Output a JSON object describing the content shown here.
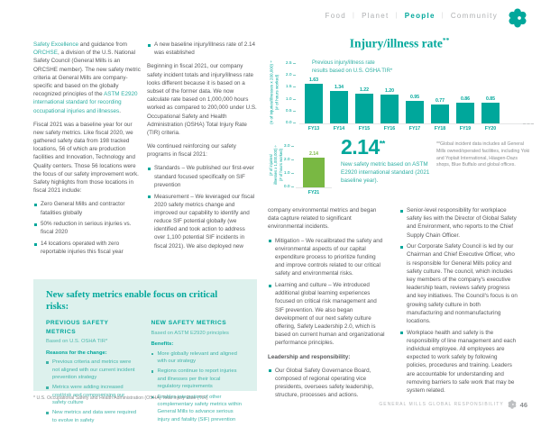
{
  "header": {
    "items": [
      {
        "label": "Food"
      },
      {
        "label": "Planet"
      },
      {
        "label": "People"
      },
      {
        "label": "Community"
      }
    ],
    "divider": "|"
  },
  "col1": {
    "p1": {
      "link1": "Safety Excellence",
      "t1": " and guidance from ",
      "link2": "ORCHSE",
      "t2": ", a division of the U.S. National Safety Council (General Mills is an ORCSHE member). The new safety metric criteria at General Mills are company-specific and based on the globally recognized principles of the ",
      "link3": "ASTM E2920 international standard for recording occupational injuries and illnesses",
      "t3": "."
    },
    "p2": "Fiscal 2021 was a baseline year for our new safety metrics. Like fiscal 2020, we gathered safety data from 198 tracked locations, 56 of which are production facilities and Innovation, Technology and Quality centers. Those 56 locations were the focus of our safety improvement work. Safety highlights from those locations in fiscal 2021 include:",
    "bullets": [
      "Zero General Mills and contractor fatalities globally",
      "50% reduction in serious injuries vs. fiscal 2020",
      "14 locations operated with zero reportable injuries this fiscal year"
    ]
  },
  "col2": {
    "bullet_top": "A new baseline injury/illness rate of 2.14 was established",
    "p1": "Beginning in fiscal 2021, our company safety incident totals and injury/illness rate looks different because it is based on a subset of the former data. We now calculate rate based on 1,000,000 hours worked as compared to 200,000 under U.S. Occupational Safety and Health Administration (OSHA) Total Injury Rate (TIR) criteria.",
    "p2": "We continued reinforcing our safety programs in fiscal 2021:",
    "bullets": [
      "Standards – We published our first-ever standard focused specifically on SIF prevention",
      "Measurement – We leveraged our fiscal 2020 safety metrics change and improved our capability to identify and reduce SIF potential globally (we identified and took action to address over 1,100 potential SIF incidents in fiscal 2021). We also deployed new"
    ]
  },
  "chart_data": [
    {
      "type": "bar",
      "title": "Injury/illness rate",
      "title_mark": "**",
      "annotation": "Previous injury/illness rate\nresults based on U.S. OSHA TIR*",
      "ylabel": "(# of injuries/illnesses x 200,000) ÷\n(# of hours worked)",
      "categories": [
        "FY13",
        "FY14",
        "FY15",
        "FY16",
        "FY17",
        "FY18",
        "FY19",
        "FY20"
      ],
      "values": [
        1.63,
        1.34,
        1.22,
        1.2,
        0.95,
        0.77,
        0.86,
        0.85
      ],
      "labels": [
        "1.63",
        "1.34",
        "1.22",
        "1.20",
        "0.95",
        "0.77",
        "0.86",
        "0.85"
      ],
      "ylim": [
        0,
        2.5
      ],
      "yticks": [
        "2.5",
        "2.0",
        "1.5",
        "1.0",
        "0.5",
        "0.0"
      ],
      "bar_color": "#00A79B",
      "grid": false,
      "legend": "none"
    },
    {
      "type": "bar",
      "title": "",
      "ylabel": "(# of injuries/\nillnesses x 1,000,000) ÷\n(# of hours worked)",
      "categories": [
        "FY21"
      ],
      "values": [
        2.14
      ],
      "labels": [
        "2.14"
      ],
      "ylim": [
        0,
        3
      ],
      "yticks": [
        "3.0",
        "2.0",
        "1.0",
        "0.0"
      ],
      "bar_color": "#79B843",
      "grid": false,
      "legend": "none"
    }
  ],
  "big_stat": {
    "value": "2.14",
    "mark": "**",
    "caption": "New safety metric based on ASTM E2920 international standard (2021 baseline year)."
  },
  "chart_footnote": "**Global incident data includes all General Mills owned/operated facilities, including Yoki and Yoplait International, Häagen-Dazs shops, Blue Buffalo and global offices.",
  "col3": {
    "p1": "company environmental metrics and began data capture related to significant environmental incidents.",
    "bullets": [
      "Mitigation – We recalibrated the safety and environmental aspects of our capital expenditure process to prioritize funding and improve controls related to our critical safety and environmental risks.",
      "Learning and culture – We introduced additional global learning experiences focused on critical risk management and SIF prevention. We also began development of our next safety culture offering, Safety Leadership 2.0, which is based on current human and organizational performance principles."
    ],
    "heading": "Leadership and responsibility:",
    "bullets2": [
      "Our Global Safety Governance Board, composed of regional operating vice presidents, oversees safety leadership, structure, processes and actions."
    ]
  },
  "col4": {
    "bullets": [
      "Senior-level responsibility for workplace safety lies with the Director of Global Safety and Environment, who reports to the Chief Supply Chain Officer.",
      "Our Corporate Safety Council is led by our Chairman and Chief Executive Officer, who is responsible for General Mills policy and safety culture. The council, which includes key members of the company's executive leadership team, reviews safety progress and key initiatives. The Council's focus is on growing safety culture in both manufacturing and nonmanufacturing locations.",
      "Workplace health and safety is the responsibility of line management and each individual employee. All employees are expected to work safely by following policies, procedures and training. Leaders are accountable for understanding and removing barriers to safe work that may be system related."
    ]
  },
  "focus_box": {
    "title": "New safety metrics enable focus on critical risks:",
    "columns": [
      {
        "heading": "PREVIOUS SAFETY METRICS",
        "basis": "Based on U.S. OSHA TIR*",
        "lead": "Reasons for the change:",
        "bullets": [
          "Previous criteria and metrics were not aligned with our current incident prevention strategy",
          "Metrics were adding increased cost/risk and compromising our safety culture",
          "New metrics and data were required to evolve in safety"
        ]
      },
      {
        "heading": "NEW SAFETY METRICS",
        "basis": "Based on ASTM E2920 principles",
        "lead": "Benefits:",
        "bullets": [
          "More globally relevant and aligned with our strategy",
          "Regions continue to report injuries and illnesses per their local regulatory requirements",
          "Enables integration of other complementary safety metrics within General Mills to advance serious injury and fatality (SIF) prevention"
        ]
      }
    ]
  },
  "footnote": "* U.S. Occupational Safety and Health Administration (OSHA) Total Injury Rate (TIR)",
  "footer": {
    "brand": "GENERAL MILLS GLOBAL RESPONSIBILITY",
    "page": "46"
  },
  "colors": {
    "accent": "#00A79B",
    "accent_light": "#2EAFA3",
    "box_bg": "#DDF1ED",
    "green": "#79B843",
    "text": "#57585A",
    "muted": "#8A8D8F"
  }
}
